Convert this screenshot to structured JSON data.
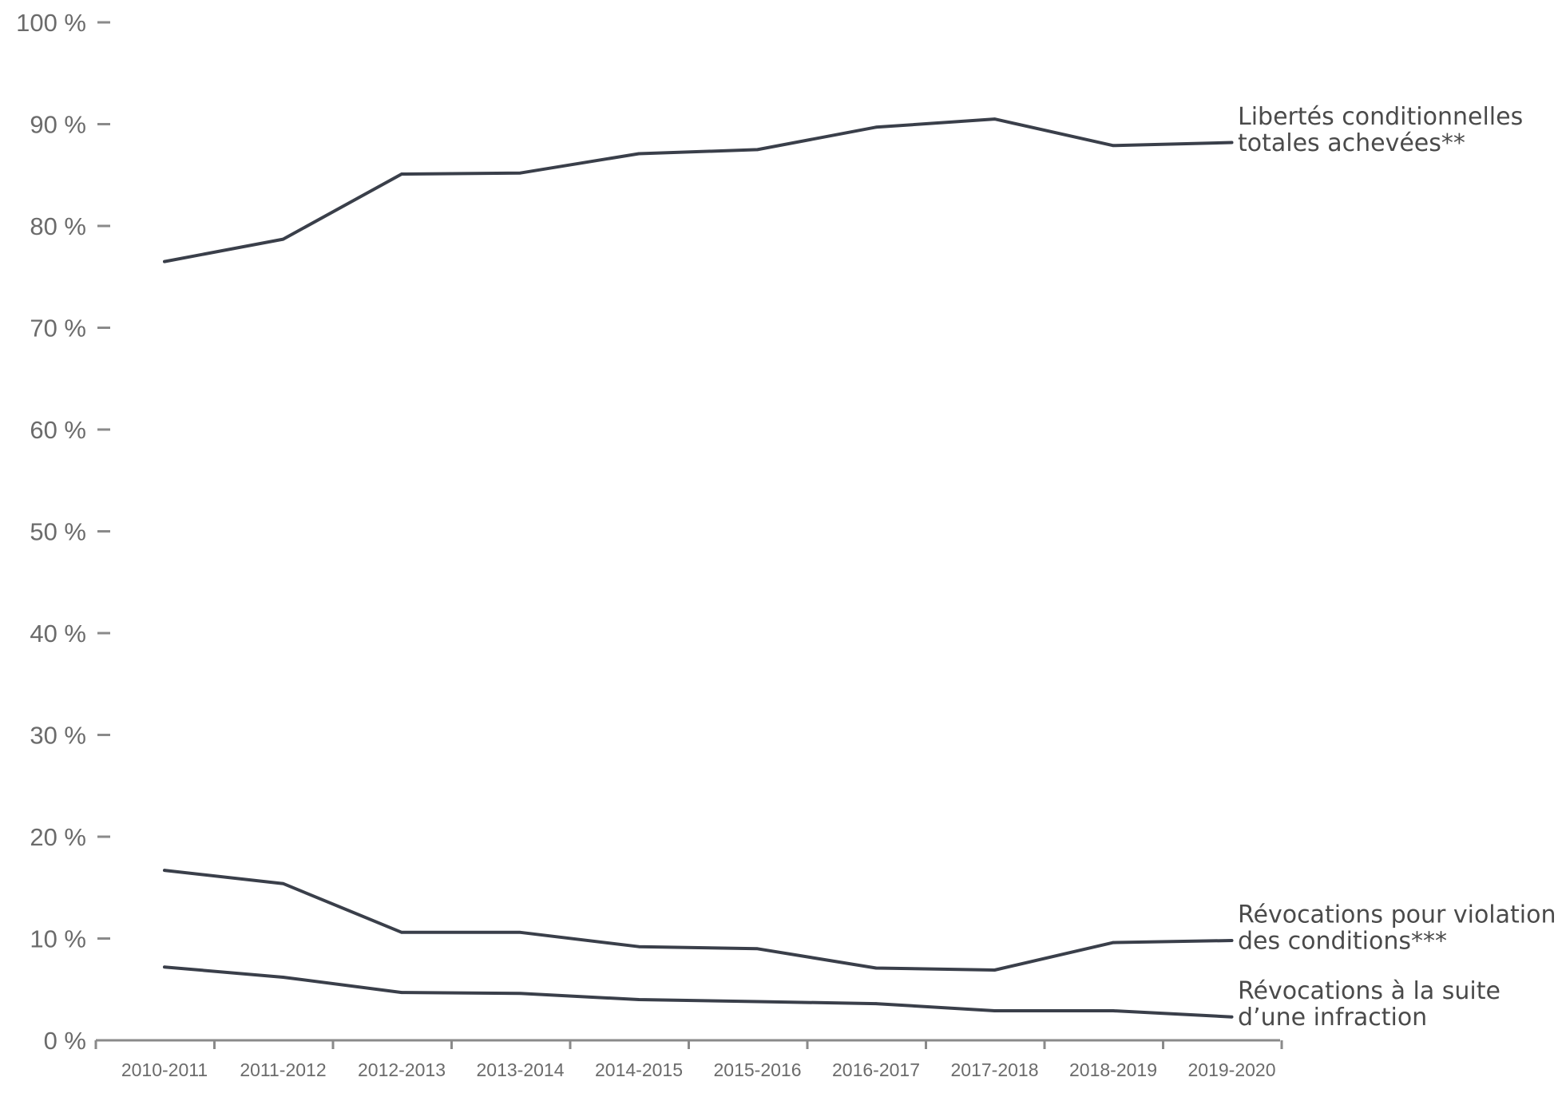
{
  "chart_data": {
    "type": "line",
    "categories": [
      "2010-2011",
      "2011-2012",
      "2012-2013",
      "2013-2014",
      "2014-2015",
      "2015-2016",
      "2016-2017",
      "2017-2018",
      "2018-2019",
      "2019-2020"
    ],
    "yticks": [
      "0 %",
      "10 %",
      "20 %",
      "30 %",
      "40 %",
      "50 %",
      "60 %",
      "70 %",
      "80 %",
      "90 %",
      "100 %"
    ],
    "ylim": [
      0,
      100
    ],
    "grid": false,
    "line_color": "#3a3f4a",
    "series": [
      {
        "name_lines": [
          "Libertés conditionnelles",
          "totales achevées**"
        ],
        "values": [
          76.5,
          78.7,
          85.1,
          85.2,
          87.1,
          87.5,
          89.7,
          90.5,
          87.9,
          88.2
        ]
      },
      {
        "name_lines": [
          "Révocations pour violation",
          "des conditions***"
        ],
        "values": [
          16.7,
          15.4,
          10.6,
          10.6,
          9.2,
          9.0,
          7.1,
          6.9,
          9.6,
          9.8
        ]
      },
      {
        "name_lines": [
          "Révocations à la suite",
          "d’une infraction"
        ],
        "values": [
          7.2,
          6.2,
          4.7,
          4.6,
          4.0,
          3.8,
          3.6,
          2.9,
          2.9,
          2.3
        ]
      }
    ]
  }
}
